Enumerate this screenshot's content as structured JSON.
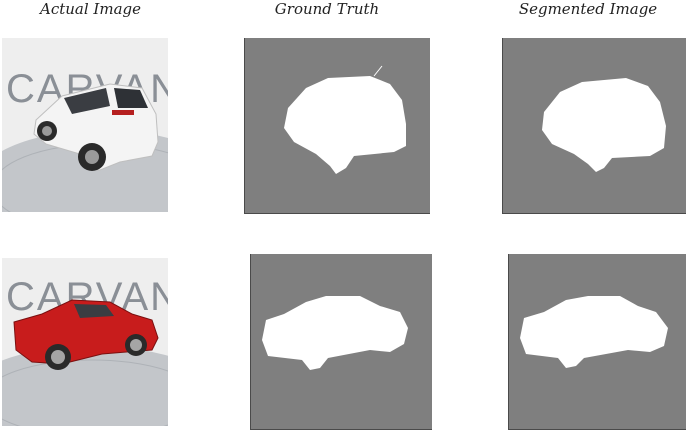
{
  "figure": {
    "column_titles": [
      "Actual Image",
      "Ground Truth",
      "Segmented Image"
    ],
    "photo_logo_text": "CARVANA",
    "rows": [
      {
        "car": "white-suv",
        "car_color": "#f4f4f4"
      },
      {
        "car": "red-coupe",
        "car_color": "#c81c1c"
      }
    ],
    "colors": {
      "mask_background": "#7f7f7f",
      "mask_foreground": "#ffffff",
      "studio_backdrop": "#eeeeee",
      "studio_floor": "#b9bcc0",
      "logo_letters": "#8a8f96"
    }
  }
}
